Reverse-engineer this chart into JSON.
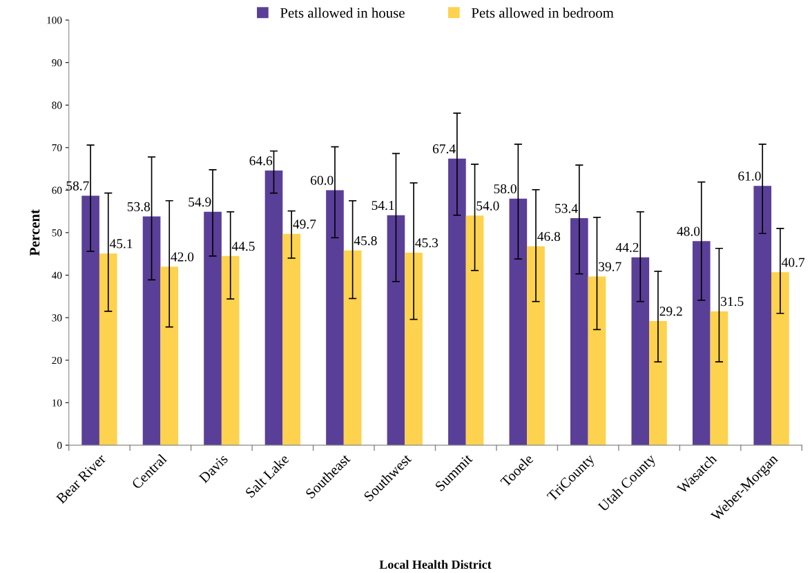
{
  "chart_data": {
    "type": "bar",
    "xlabel": "Local Health District",
    "ylabel": "Percent",
    "categories": [
      "Bear River",
      "Central",
      "Davis",
      "Salt Lake",
      "Southeast",
      "Southwest",
      "Summit",
      "Tooele",
      "TriCounty",
      "Utah County",
      "Wasatch",
      "Weber-Morgan"
    ],
    "series": [
      {
        "name": "Pets allowed in house",
        "color": "#5a3f98",
        "values": [
          58.7,
          53.8,
          54.9,
          64.6,
          60.0,
          54.1,
          67.4,
          58.0,
          53.4,
          44.2,
          48.0,
          61.0
        ],
        "value_labels": [
          "58.7",
          "53.8",
          "54.9",
          "64.6",
          "60.0",
          "54.1",
          "67.4",
          "58.0",
          "53.4",
          "44.2",
          "48.0",
          "61.0"
        ],
        "errors": [
          [
            45.6,
            70.6
          ],
          [
            38.9,
            67.8
          ],
          [
            44.5,
            64.8
          ],
          [
            59.3,
            69.2
          ],
          [
            48.8,
            70.2
          ],
          [
            38.5,
            68.6
          ],
          [
            54.1,
            78.1
          ],
          [
            43.8,
            70.8
          ],
          [
            40.3,
            65.9
          ],
          [
            33.8,
            54.9
          ],
          [
            34.1,
            61.9
          ],
          [
            49.8,
            70.8
          ]
        ]
      },
      {
        "name": "Pets allowed in bedroom",
        "color": "#fdd24e",
        "values": [
          45.1,
          42.0,
          44.5,
          49.7,
          45.8,
          45.3,
          54.0,
          46.8,
          39.7,
          29.2,
          31.5,
          40.7
        ],
        "value_labels": [
          "45.1",
          "42.0",
          "44.5",
          "49.7",
          "45.8",
          "45.3",
          "54.0",
          "46.8",
          "39.7",
          "29.2",
          "31.5",
          "40.7"
        ],
        "errors": [
          [
            31.5,
            59.3
          ],
          [
            27.8,
            57.5
          ],
          [
            34.4,
            54.9
          ],
          [
            44.0,
            55.1
          ],
          [
            34.5,
            57.5
          ],
          [
            29.6,
            61.7
          ],
          [
            41.1,
            66.1
          ],
          [
            33.8,
            60.1
          ],
          [
            27.2,
            53.6
          ],
          [
            19.6,
            40.9
          ],
          [
            19.6,
            46.3
          ],
          [
            31.0,
            51.0
          ]
        ]
      }
    ],
    "ylim": [
      0,
      100
    ],
    "yticks": [
      0,
      10,
      20,
      30,
      40,
      50,
      60,
      70,
      80,
      90,
      100
    ],
    "legend": "top"
  }
}
